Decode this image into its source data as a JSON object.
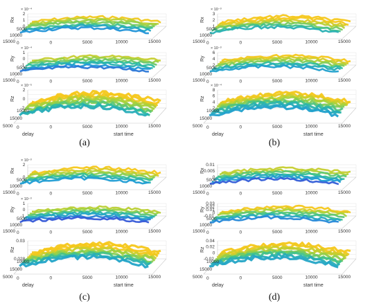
{
  "chart_data": [
    {
      "type": "surface",
      "caption": "(a)",
      "panels": [
        {
          "zlabel": "Rx",
          "exponent": "× 10⁻⁴",
          "zticks": [
            "2",
            "1",
            "0"
          ],
          "xticks": [
            "5000",
            "10000",
            "15000"
          ],
          "yticks": [
            "0",
            "0",
            "5000",
            "10000",
            "15000"
          ],
          "xlabel": "",
          "ylabel": "",
          "color_bias": 0.55
        },
        {
          "zlabel": "Ry",
          "exponent": "× 10⁻⁴",
          "zticks": [
            "1",
            "0",
            "-1"
          ],
          "xticks": [
            "5000",
            "10000",
            "15000"
          ],
          "yticks": [
            "0",
            "0",
            "5000",
            "10000",
            "15000"
          ],
          "xlabel": "",
          "ylabel": "",
          "color_bias": 0.45
        },
        {
          "zlabel": "Rz",
          "exponent": "× 10⁻⁵",
          "zticks": [
            "2",
            "0",
            "-2"
          ],
          "xticks": [
            "10000",
            "15000",
            "5000"
          ],
          "yticks": [
            "0",
            "0",
            "5000",
            "10000",
            "15000"
          ],
          "xlabel": "delay",
          "ylabel": "start time",
          "color_bias": 0.7
        }
      ]
    },
    {
      "type": "surface",
      "caption": "(b)",
      "panels": [
        {
          "zlabel": "Rx",
          "exponent": "× 10⁻³",
          "zticks": [
            "3",
            "2",
            "1"
          ],
          "xticks": [
            "5000",
            "10000",
            "15000"
          ],
          "yticks": [
            "0",
            "0",
            "5000",
            "10000",
            "15000"
          ],
          "xlabel": "",
          "ylabel": "",
          "color_bias": 0.75
        },
        {
          "zlabel": "Ry",
          "exponent": "× 10⁻³",
          "zticks": [
            "6",
            "4",
            "2"
          ],
          "xticks": [
            "5000",
            "10000",
            "15000"
          ],
          "yticks": [
            "0",
            "0",
            "5000",
            "10000",
            "15000"
          ],
          "xlabel": "",
          "ylabel": "",
          "color_bias": 0.6
        },
        {
          "zlabel": "Rz",
          "exponent": "× 10⁻⁴",
          "zticks": [
            "8",
            "6",
            "4",
            "2"
          ],
          "xticks": [
            "10000",
            "15000",
            "5000"
          ],
          "yticks": [
            "0",
            "0",
            "5000",
            "10000",
            "15000"
          ],
          "xlabel": "delay",
          "ylabel": "start time",
          "color_bias": 0.6
        }
      ]
    },
    {
      "type": "surface",
      "caption": "(c)",
      "panels": [
        {
          "zlabel": "Rx",
          "exponent": "× 10⁻³",
          "zticks": [
            "2",
            "0"
          ],
          "xticks": [
            "5000",
            "10000",
            "15000"
          ],
          "yticks": [
            "0",
            "0",
            "5000",
            "10000",
            "15000"
          ],
          "xlabel": "",
          "ylabel": "",
          "color_bias": 0.6
        },
        {
          "zlabel": "Ry",
          "exponent": "× 10⁻³",
          "zticks": [
            "1",
            "0",
            "-1"
          ],
          "xticks": [
            "5000",
            "10000",
            "15000"
          ],
          "yticks": [
            "0",
            "0",
            "5000",
            "10000",
            "15000"
          ],
          "xlabel": "",
          "ylabel": "",
          "color_bias": 0.4
        },
        {
          "zlabel": "Rz",
          "exponent": "",
          "zticks": [
            "0.03",
            "0.028"
          ],
          "xticks": [
            "10000",
            "15000",
            "5000"
          ],
          "yticks": [
            "0",
            "0",
            "5000",
            "10000",
            "15000"
          ],
          "xlabel": "delay",
          "ylabel": "start time",
          "color_bias": 0.7
        }
      ]
    },
    {
      "type": "surface",
      "caption": "(d)",
      "panels": [
        {
          "zlabel": "Rx",
          "exponent": "",
          "zticks": [
            "0.01",
            "0.005",
            "0"
          ],
          "xticks": [
            "5000",
            "10000",
            "15000"
          ],
          "yticks": [
            "0",
            "0",
            "5000",
            "10000",
            "15000"
          ],
          "xlabel": "",
          "ylabel": "",
          "color_bias": 0.45
        },
        {
          "zlabel": "Ry",
          "exponent": "",
          "zticks": [
            "0.03",
            "0.02",
            "0.01",
            "0",
            "-0.01"
          ],
          "xticks": [
            "5000",
            "10000",
            "15000"
          ],
          "yticks": [
            "0",
            "0",
            "5000",
            "10000",
            "15000"
          ],
          "xlabel": "",
          "ylabel": "",
          "color_bias": 0.55
        },
        {
          "zlabel": "Rz",
          "exponent": "",
          "zticks": [
            "0.04",
            "0.02",
            "0",
            "-0.02"
          ],
          "xticks": [
            "10000",
            "15000",
            "5000"
          ],
          "yticks": [
            "0",
            "0",
            "5000",
            "10000",
            "15000"
          ],
          "xlabel": "delay",
          "ylabel": "start time",
          "color_bias": 0.65
        }
      ]
    }
  ],
  "colors": {
    "low": "#3b3fd6",
    "mid_low": "#1f9ad8",
    "mid": "#2fbf9a",
    "mid_high": "#a6d23b",
    "high": "#f5c71a"
  }
}
